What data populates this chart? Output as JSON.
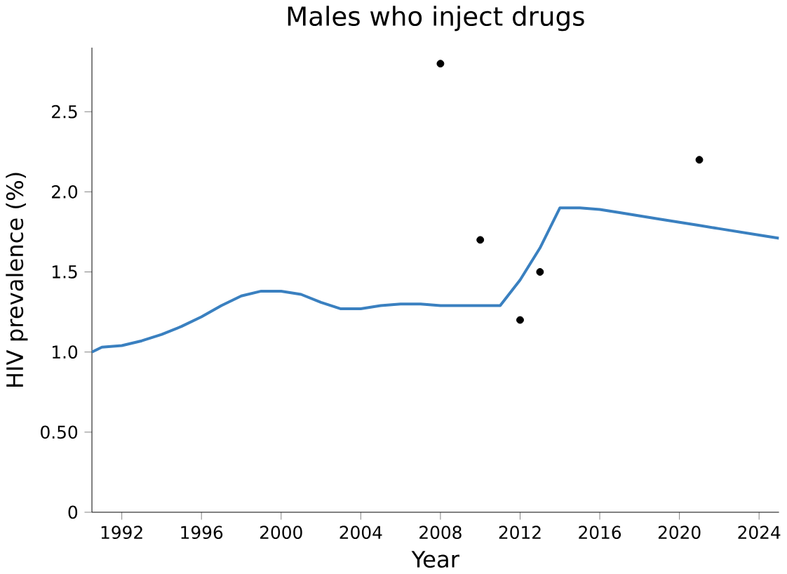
{
  "chart_data": {
    "type": "line",
    "title": "Males who inject drugs",
    "xlabel": "Year",
    "ylabel": "HIV prevalence (%)",
    "xlim": [
      1990.5,
      2025
    ],
    "ylim": [
      0,
      2.9
    ],
    "xticks": [
      1992,
      1996,
      2000,
      2004,
      2008,
      2012,
      2016,
      2020,
      2024
    ],
    "yticks": [
      0,
      {
        "value": 0.5,
        "label": "0.50"
      },
      {
        "value": 1.0,
        "label": "1.0"
      },
      1.5,
      {
        "value": 2.0,
        "label": "2.0"
      },
      2.5
    ],
    "grid": false,
    "series": [
      {
        "color": "#3a80c0",
        "marker": "none",
        "line_style": "solid",
        "x": [
          1990.5,
          1991,
          1992,
          1993,
          1994,
          1995,
          1996,
          1997,
          1998,
          1999,
          2000,
          2001,
          2002,
          2003,
          2004,
          2005,
          2006,
          2007,
          2008,
          2009,
          2010,
          2011,
          2012,
          2013,
          2014,
          2015,
          2016,
          2017,
          2018,
          2019,
          2020,
          2021,
          2022,
          2023,
          2024,
          2025
        ],
        "values": [
          1.0,
          1.03,
          1.04,
          1.07,
          1.11,
          1.16,
          1.22,
          1.29,
          1.35,
          1.38,
          1.38,
          1.36,
          1.31,
          1.27,
          1.27,
          1.29,
          1.3,
          1.3,
          1.29,
          1.29,
          1.29,
          1.29,
          1.45,
          1.65,
          1.9,
          1.9,
          1.89,
          1.87,
          1.85,
          1.83,
          1.81,
          1.79,
          1.77,
          1.75,
          1.73,
          1.71
        ]
      },
      {
        "type": "scatter",
        "color": "#000000",
        "marker": "circle",
        "x": [
          2008,
          2010,
          2012,
          2013,
          2021
        ],
        "values": [
          2.8,
          1.7,
          1.2,
          1.5,
          2.2
        ]
      }
    ]
  }
}
